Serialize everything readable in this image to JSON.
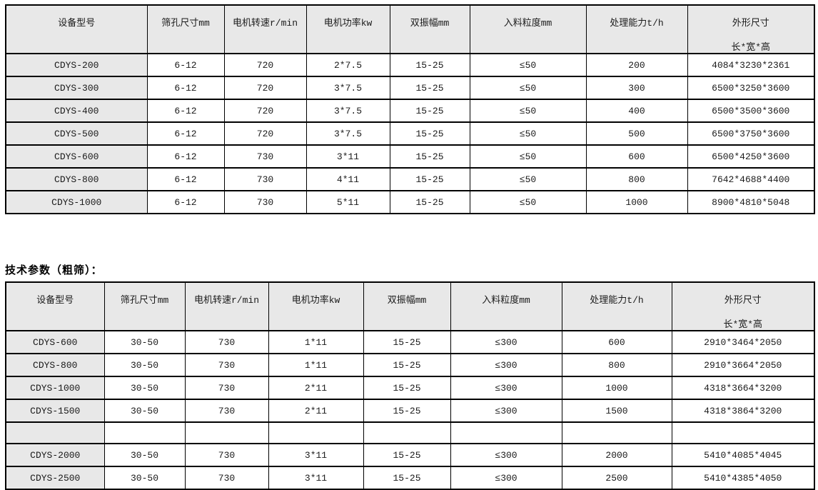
{
  "colors": {
    "header_bg": "#e8e8e8",
    "cell_bg": "#ffffff",
    "border": "#000000",
    "text": "#1a1a1a"
  },
  "section_heading": "技术参数（粗筛）：",
  "tables": [
    {
      "title": "",
      "headers": [
        "设备型号",
        "筛孔尺寸mm",
        "电机转速r/min",
        "电机功率kw",
        "双振幅mm",
        "入料粒度mm",
        "处理能力t/h",
        "外形尺寸"
      ],
      "header_sub": "长*宽*高",
      "rows": [
        [
          "CDYS-200",
          "6-12",
          "720",
          "2*7.5",
          "15-25",
          "≤50",
          "200",
          "4084*3230*2361"
        ],
        [
          "CDYS-300",
          "6-12",
          "720",
          "3*7.5",
          "15-25",
          "≤50",
          "300",
          "6500*3250*3600"
        ],
        [
          "CDYS-400",
          "6-12",
          "720",
          "3*7.5",
          "15-25",
          "≤50",
          "400",
          "6500*3500*3600"
        ],
        [
          "CDYS-500",
          "6-12",
          "720",
          "3*7.5",
          "15-25",
          "≤50",
          "500",
          "6500*3750*3600"
        ],
        [
          "CDYS-600",
          "6-12",
          "730",
          "3*11",
          "15-25",
          "≤50",
          "600",
          "6500*4250*3600"
        ],
        [
          "CDYS-800",
          "6-12",
          "730",
          "4*11",
          "15-25",
          "≤50",
          "800",
          "7642*4688*4400"
        ],
        [
          "CDYS-1000",
          "6-12",
          "730",
          "5*11",
          "15-25",
          "≤50",
          "1000",
          "8900*4810*5048"
        ]
      ]
    },
    {
      "title": "技术参数（粗筛）：",
      "headers": [
        "设备型号",
        "筛孔尺寸mm",
        "电机转速r/min",
        "电机功率kw",
        "双振幅mm",
        "入料粒度mm",
        "处理能力t/h",
        "外形尺寸"
      ],
      "header_sub": "长*宽*高",
      "rows": [
        [
          "CDYS-600",
          "30-50",
          "730",
          "1*11",
          "15-25",
          "≤300",
          "600",
          "2910*3464*2050"
        ],
        [
          "CDYS-800",
          "30-50",
          "730",
          "1*11",
          "15-25",
          "≤300",
          "800",
          "2910*3664*2050"
        ],
        [
          "CDYS-1000",
          "30-50",
          "730",
          "2*11",
          "15-25",
          "≤300",
          "1000",
          "4318*3664*3200"
        ],
        [
          "CDYS-1500",
          "30-50",
          "730",
          "2*11",
          "15-25",
          "≤300",
          "1500",
          "4318*3864*3200"
        ],
        [
          "",
          "",
          "",
          "",
          "",
          "",
          "",
          ""
        ],
        [
          "CDYS-2000",
          "30-50",
          "730",
          "3*11",
          "15-25",
          "≤300",
          "2000",
          "5410*4085*4045"
        ],
        [
          "CDYS-2500",
          "30-50",
          "730",
          "3*11",
          "15-25",
          "≤300",
          "2500",
          "5410*4385*4050"
        ]
      ]
    }
  ]
}
